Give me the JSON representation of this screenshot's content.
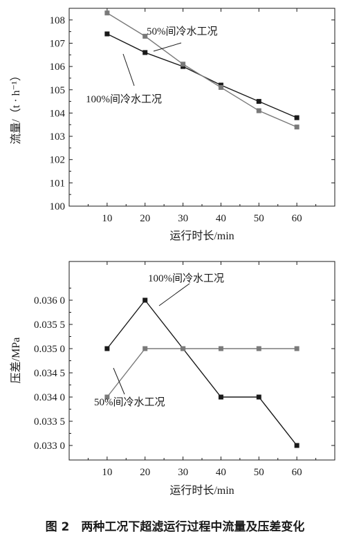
{
  "figure_caption": "图 2　两种工况下超滤运行过程中流量及压差变化",
  "colors": {
    "series_100": "#1a1a1a",
    "series_50": "#7a7a7a",
    "axis": "#1a1a1a"
  },
  "chart_data": [
    {
      "type": "line",
      "xlabel": "运行时长/min",
      "ylabel": "流量/（t · h⁻¹）",
      "x": [
        10,
        20,
        30,
        40,
        50,
        60
      ],
      "xlim": [
        0,
        70
      ],
      "ylim": [
        100,
        108.5
      ],
      "xticks": [
        10,
        20,
        30,
        40,
        50,
        60
      ],
      "yticks": [
        100,
        101,
        102,
        103,
        104,
        105,
        106,
        107,
        108
      ],
      "ytick_labels": [
        "100",
        "101",
        "102",
        "103",
        "104",
        "105",
        "106",
        "107",
        "108"
      ],
      "series": [
        {
          "name": "100%间冷水工况",
          "values": [
            107.4,
            106.6,
            106.0,
            105.2,
            104.5,
            103.8
          ]
        },
        {
          "name": "50%间冷水工况",
          "values": [
            108.3,
            107.3,
            106.1,
            105.1,
            104.1,
            103.4
          ]
        }
      ],
      "annotations": [
        {
          "text": "50%间冷水工况",
          "series": 1
        },
        {
          "text": "100%间冷水工况",
          "series": 0
        }
      ]
    },
    {
      "type": "line",
      "xlabel": "运行时长/min",
      "ylabel": "压差/MPa",
      "x": [
        10,
        20,
        30,
        40,
        50,
        60
      ],
      "xlim": [
        0,
        70
      ],
      "ylim": [
        0.0327,
        0.0368
      ],
      "xticks": [
        10,
        20,
        30,
        40,
        50,
        60
      ],
      "yticks": [
        0.033,
        0.0335,
        0.034,
        0.0345,
        0.035,
        0.0355,
        0.036
      ],
      "ytick_labels": [
        "0.033 0",
        "0.033 5",
        "0.034 0",
        "0.034 5",
        "0.035 0",
        "0.035 5",
        "0.036 0"
      ],
      "series": [
        {
          "name": "100%间冷水工况",
          "values": [
            0.035,
            0.036,
            0.035,
            0.034,
            0.034,
            0.033
          ]
        },
        {
          "name": "50%间冷水工况",
          "values": [
            0.034,
            0.035,
            0.035,
            0.035,
            0.035,
            0.035
          ]
        }
      ],
      "annotations": [
        {
          "text": "100%间冷水工况",
          "series": 0
        },
        {
          "text": "50%间冷水工况",
          "series": 1
        }
      ]
    }
  ]
}
